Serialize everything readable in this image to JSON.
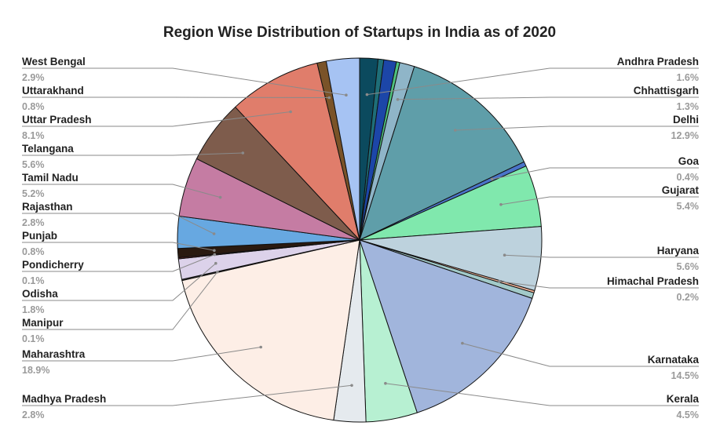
{
  "chart_data": {
    "type": "pie",
    "title": "Region Wise Distribution of Startups in India as of 2020",
    "slices": [
      {
        "label": "Andhra Pradesh",
        "pct_label": "1.6%",
        "value": 1.6,
        "color": "#0b4a5e"
      },
      {
        "label": "",
        "pct_label": "",
        "value": 0.5,
        "color": "#1e6e78"
      },
      {
        "label": "",
        "pct_label": "",
        "value": 1.1,
        "color": "#1c46a8"
      },
      {
        "label": "",
        "pct_label": "",
        "value": 0.3,
        "color": "#4fc27f"
      },
      {
        "label": "Chhattisgarh",
        "pct_label": "1.3%",
        "value": 1.3,
        "color": "#8fb5c8"
      },
      {
        "label": "Delhi",
        "pct_label": "12.9%",
        "value": 12.9,
        "color": "#5f9ea9"
      },
      {
        "label": "Goa",
        "pct_label": "0.4%",
        "value": 0.4,
        "color": "#4a74c9"
      },
      {
        "label": "Gujarat",
        "pct_label": "5.4%",
        "value": 5.4,
        "color": "#80e8ad"
      },
      {
        "label": "Haryana",
        "pct_label": "5.6%",
        "value": 5.6,
        "color": "#bdd2dd"
      },
      {
        "label": "Himachal Pradesh",
        "pct_label": "0.2%",
        "value": 0.2,
        "color": "#f4b59a"
      },
      {
        "label": "",
        "pct_label": "",
        "value": 0.5,
        "color": "#a2cac9"
      },
      {
        "label": "Karnataka",
        "pct_label": "14.5%",
        "value": 14.5,
        "color": "#a1b5dc"
      },
      {
        "label": "Kerala",
        "pct_label": "4.5%",
        "value": 4.5,
        "color": "#b7f0d2"
      },
      {
        "label": "Madhya Pradesh",
        "pct_label": "2.8%",
        "value": 2.8,
        "color": "#e5eaee"
      },
      {
        "label": "Maharashtra",
        "pct_label": "18.9%",
        "value": 18.9,
        "color": "#fdeee6"
      },
      {
        "label": "Manipur",
        "pct_label": "0.1%",
        "value": 0.1,
        "color": "#3a3a3a"
      },
      {
        "label": "Odisha",
        "pct_label": "1.8%",
        "value": 1.8,
        "color": "#dcd2ea"
      },
      {
        "label": "Pondicherry",
        "pct_label": "0.1%",
        "value": 0.1,
        "color": "#8a3030"
      },
      {
        "label": "Punjab",
        "pct_label": "0.8%",
        "value": 0.8,
        "color": "#2a1a10"
      },
      {
        "label": "Rajasthan",
        "pct_label": "2.8%",
        "value": 2.8,
        "color": "#67a8e1"
      },
      {
        "label": "Tamil Nadu",
        "pct_label": "5.2%",
        "value": 5.2,
        "color": "#c57ca3"
      },
      {
        "label": "Telangana",
        "pct_label": "5.6%",
        "value": 5.6,
        "color": "#7e5c4c"
      },
      {
        "label": "Uttar Pradesh",
        "pct_label": "8.1%",
        "value": 8.1,
        "color": "#e07d6b"
      },
      {
        "label": "Uttarakhand",
        "pct_label": "0.8%",
        "value": 0.8,
        "color": "#7a5328"
      },
      {
        "label": "West Bengal",
        "pct_label": "2.9%",
        "value": 2.9,
        "color": "#a6c3f3"
      }
    ]
  }
}
